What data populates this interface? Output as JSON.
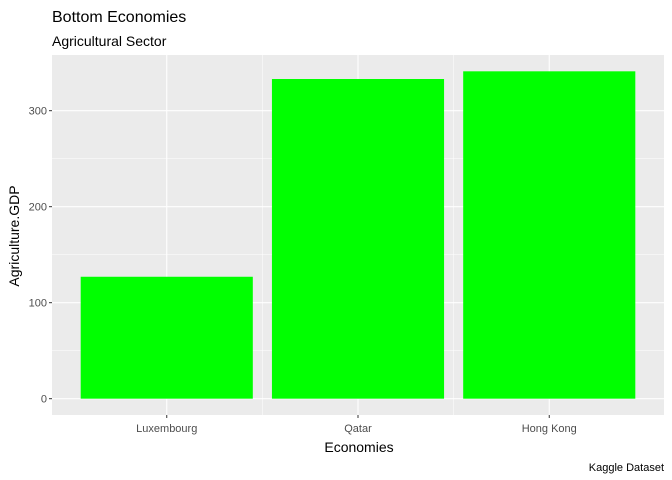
{
  "chart_data": {
    "type": "bar",
    "title": "Bottom Economies",
    "subtitle": "Agricultural Sector",
    "xlabel": "Economies",
    "ylabel": "Agriculture.GDP",
    "caption": "Kaggle Dataset",
    "categories": [
      "Luxembourg",
      "Qatar",
      "Hong Kong"
    ],
    "values": [
      127,
      333,
      341
    ],
    "ylim": [
      -17,
      358
    ],
    "yticks": [
      0,
      100,
      200,
      300
    ],
    "ytick_labels": [
      "0",
      "100",
      "200",
      "300"
    ],
    "grid": true,
    "bar_color": "#00FF00",
    "panel_color": "#EBEBEB",
    "grid_color": "#FFFFFF"
  }
}
